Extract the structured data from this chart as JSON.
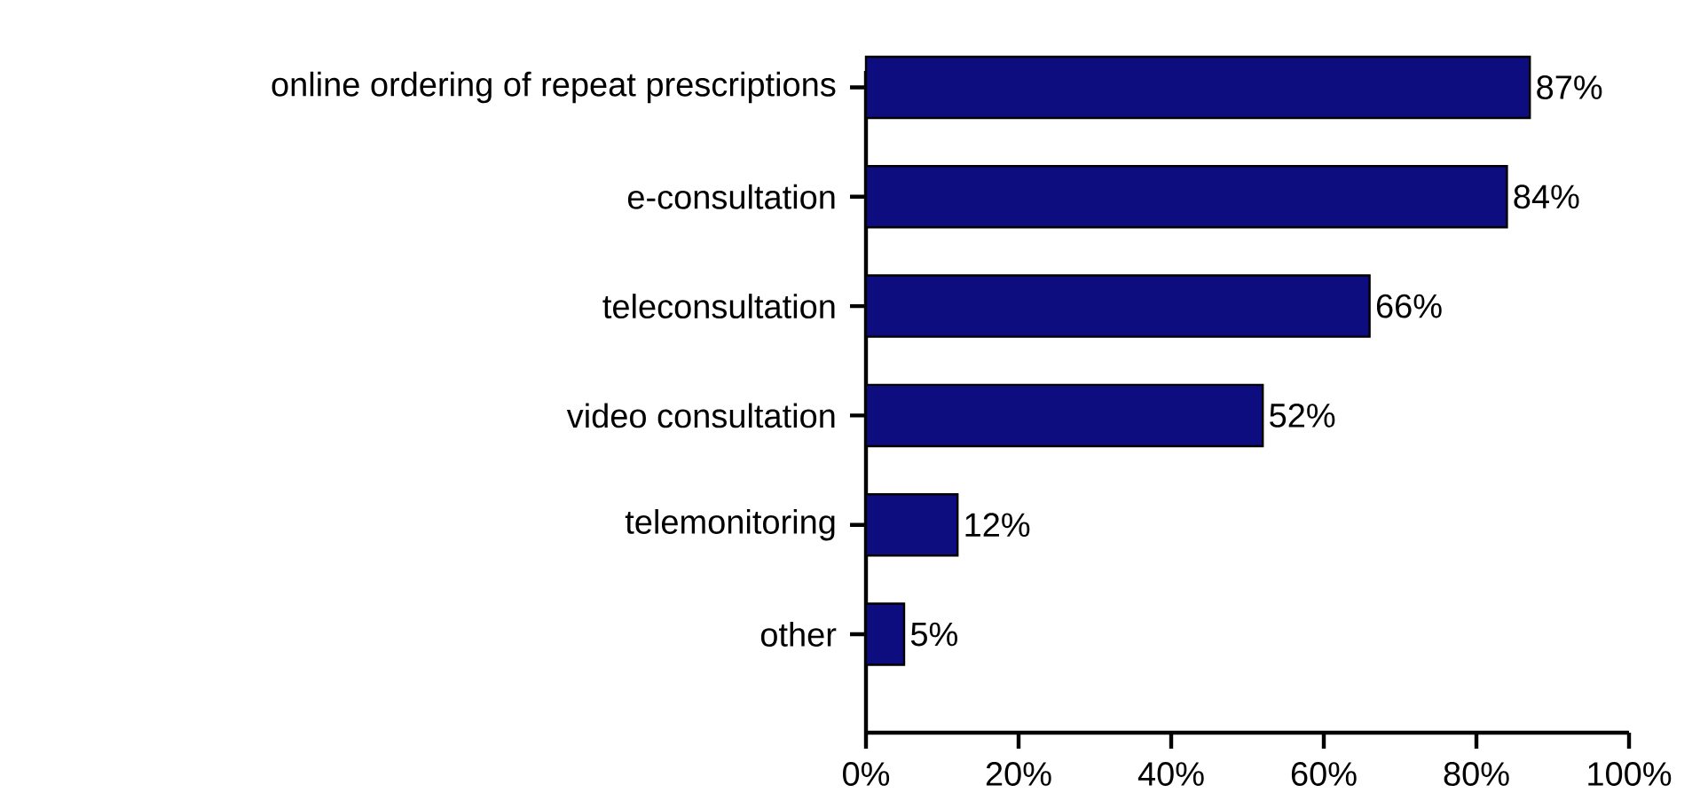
{
  "chart_data": {
    "type": "bar",
    "orientation": "horizontal",
    "categories": [
      "online ordering of repeat prescriptions",
      "e-consultation",
      "teleconsultation",
      "video consultation",
      "telemonitoring",
      "other"
    ],
    "values": [
      87,
      84,
      66,
      52,
      12,
      5
    ],
    "value_labels": [
      "87%",
      "84%",
      "66%",
      "52%",
      "12%",
      "5%"
    ],
    "color": "#0d0d80",
    "xlim": [
      0,
      100
    ],
    "xticks": [
      {
        "value": 0,
        "label": "0%"
      },
      {
        "value": 20,
        "label": "20%"
      },
      {
        "value": 40,
        "label": "40%"
      },
      {
        "value": 60,
        "label": "60%"
      },
      {
        "value": 80,
        "label": "80%"
      },
      {
        "value": 100,
        "label": "100%"
      }
    ],
    "grid": false
  }
}
